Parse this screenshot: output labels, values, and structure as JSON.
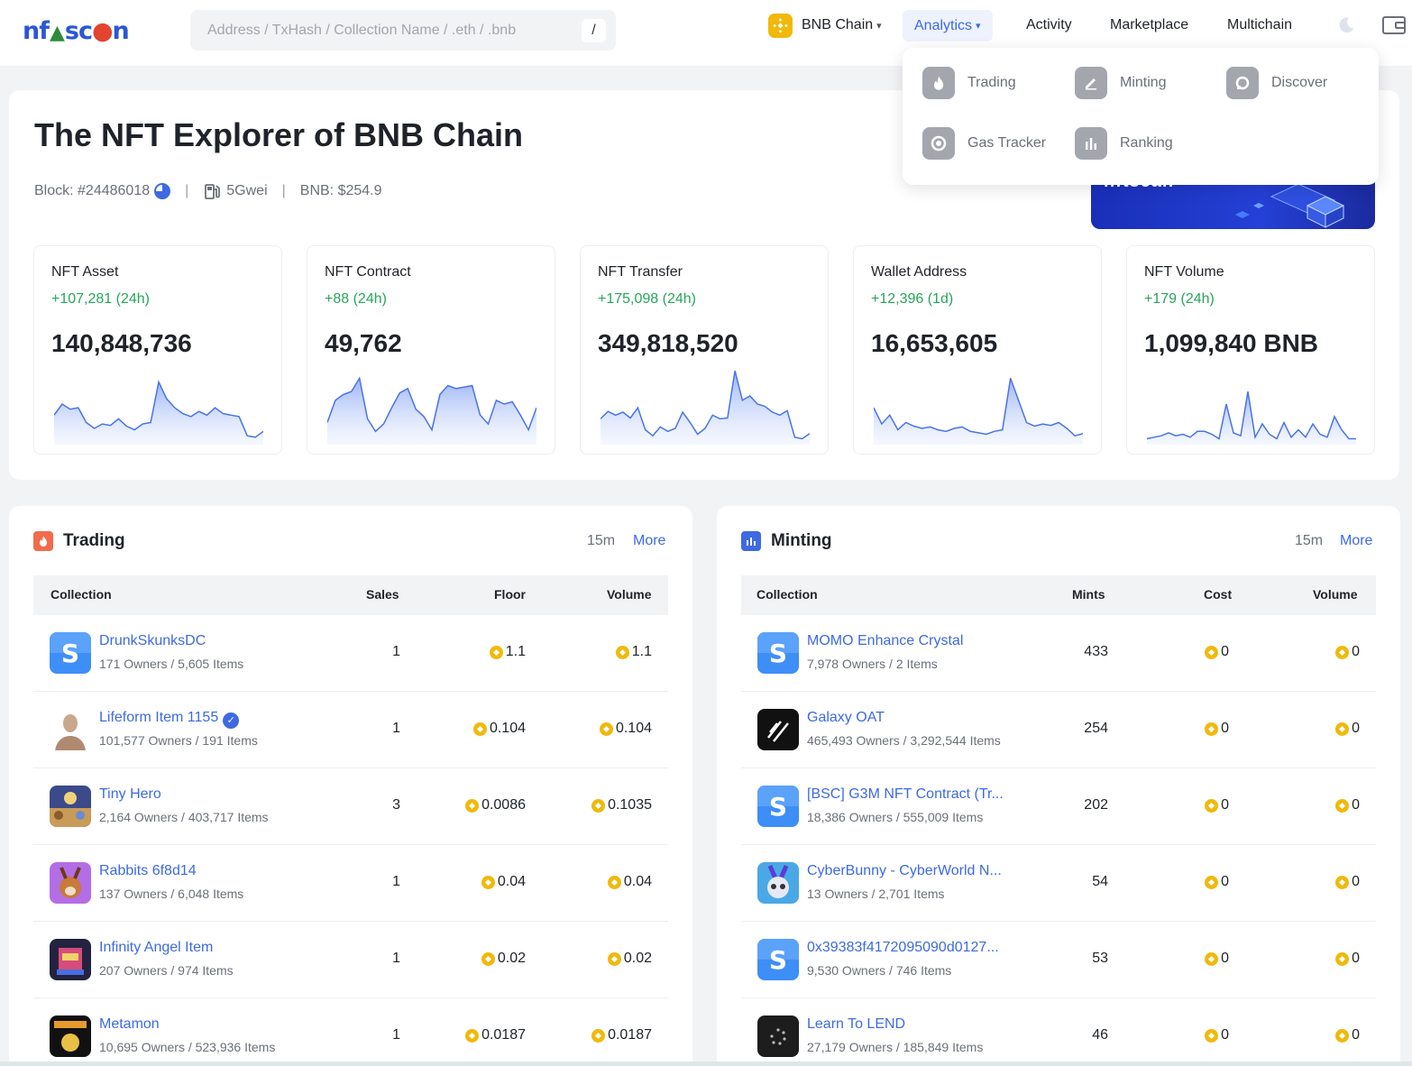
{
  "header": {
    "logo": "nftscan",
    "search_placeholder": "Address / TxHash / Collection Name / .eth / .bnb",
    "search_shortcut": "/",
    "chain": "BNB Chain",
    "nav": {
      "analytics": "Analytics",
      "activity": "Activity",
      "marketplace": "Marketplace",
      "multichain": "Multichain"
    }
  },
  "dropdown": {
    "items": [
      {
        "label": "Trading",
        "icon": "fire-icon"
      },
      {
        "label": "Minting",
        "icon": "pencil-icon"
      },
      {
        "label": "Discover",
        "icon": "discover-icon"
      },
      {
        "label": "Gas Tracker",
        "icon": "gauge-icon"
      },
      {
        "label": "Ranking",
        "icon": "bars-icon"
      }
    ]
  },
  "hero": {
    "title": "The NFT Explorer of BNB Chain",
    "block": "Block: #24486018",
    "gas": "5Gwei",
    "bnb_price": "BNB: $254.9",
    "banner_text": "nftscan"
  },
  "stats": [
    {
      "label": "NFT Asset",
      "delta": "+107,281 (24h)",
      "value": "140,848,736",
      "spark": [
        40,
        55,
        48,
        50,
        30,
        22,
        28,
        26,
        35,
        25,
        20,
        28,
        30,
        85,
        62,
        50,
        42,
        38,
        45,
        40,
        50,
        42,
        40,
        38,
        12,
        10,
        18
      ]
    },
    {
      "label": "NFT Contract",
      "delta": "+88 (24h)",
      "value": "49,762",
      "spark": [
        30,
        60,
        68,
        72,
        90,
        35,
        18,
        28,
        50,
        70,
        76,
        48,
        38,
        20,
        68,
        80,
        76,
        78,
        80,
        40,
        28,
        60,
        55,
        58,
        40,
        20,
        50
      ]
    },
    {
      "label": "NFT Transfer",
      "delta": "+175,098 (24h)",
      "value": "349,818,520",
      "spark": [
        35,
        45,
        40,
        44,
        36,
        50,
        20,
        12,
        24,
        18,
        22,
        44,
        30,
        14,
        22,
        40,
        35,
        36,
        100,
        60,
        66,
        55,
        52,
        44,
        40,
        46,
        10,
        8,
        15
      ]
    },
    {
      "label": "Wallet Address",
      "delta": "+12,396 (1d)",
      "value": "16,653,605",
      "spark": [
        50,
        28,
        40,
        20,
        30,
        25,
        22,
        24,
        20,
        18,
        22,
        24,
        18,
        16,
        14,
        18,
        20,
        90,
        60,
        30,
        25,
        28,
        26,
        30,
        22,
        12,
        15
      ]
    },
    {
      "label": "NFT Volume",
      "delta": "+179 (24h)",
      "value": "1,099,840 BNB",
      "spark": [
        8,
        10,
        12,
        16,
        12,
        14,
        10,
        18,
        18,
        14,
        8,
        55,
        16,
        12,
        72,
        10,
        28,
        14,
        8,
        30,
        10,
        20,
        10,
        28,
        14,
        10,
        38,
        20,
        8,
        8
      ]
    }
  ],
  "trading": {
    "title": "Trading",
    "time": "15m",
    "more": "More",
    "columns": [
      "Collection",
      "Sales",
      "Floor",
      "Volume"
    ],
    "rows": [
      {
        "name": "DrunkSkunksDC",
        "sub": "171 Owners / 5,605 Items",
        "sales": "1",
        "floor": "1.1",
        "volume": "1.1"
      },
      {
        "name": "Lifeform Item 1155",
        "sub": "101,577 Owners / 191 Items",
        "sales": "1",
        "floor": "0.104",
        "volume": "0.104"
      },
      {
        "name": "Tiny Hero",
        "sub": "2,164 Owners / 403,717 Items",
        "sales": "3",
        "floor": "0.0086",
        "volume": "0.1035"
      },
      {
        "name": "Rabbits 6f8d14",
        "sub": "137 Owners / 6,048 Items",
        "sales": "1",
        "floor": "0.04",
        "volume": "0.04"
      },
      {
        "name": "Infinity Angel Item",
        "sub": "207 Owners / 974 Items",
        "sales": "1",
        "floor": "0.02",
        "volume": "0.02"
      },
      {
        "name": "Metamon",
        "sub": "10,695 Owners / 523,936 Items",
        "sales": "1",
        "floor": "0.0187",
        "volume": "0.0187"
      }
    ]
  },
  "minting": {
    "title": "Minting",
    "time": "15m",
    "more": "More",
    "columns": [
      "Collection",
      "Mints",
      "Cost",
      "Volume"
    ],
    "rows": [
      {
        "name": "MOMO Enhance Crystal",
        "sub": "7,978 Owners / 2 Items",
        "mints": "433",
        "cost": "0",
        "volume": "0"
      },
      {
        "name": "Galaxy OAT",
        "sub": "465,493 Owners / 3,292,544 Items",
        "mints": "254",
        "cost": "0",
        "volume": "0"
      },
      {
        "name": "[BSC] G3M NFT Contract (Tr...",
        "sub": "18,386 Owners / 555,009 Items",
        "mints": "202",
        "cost": "0",
        "volume": "0"
      },
      {
        "name": "CyberBunny - CyberWorld N...",
        "sub": "13 Owners / 2,701 Items",
        "mints": "54",
        "cost": "0",
        "volume": "0"
      },
      {
        "name": "0x39383f4172095090d0127...",
        "sub": "9,530 Owners / 746 Items",
        "mints": "53",
        "cost": "0",
        "volume": "0"
      },
      {
        "name": "Learn To LEND",
        "sub": "27,179 Owners / 185,849 Items",
        "mints": "46",
        "cost": "0",
        "volume": "0"
      }
    ]
  },
  "colors": {
    "accent": "#3e6ae1",
    "positive": "#26a65b",
    "bnb": "#f0b90b",
    "trading_icon": "#f26b4d",
    "minting_icon": "#3e6ae1"
  }
}
